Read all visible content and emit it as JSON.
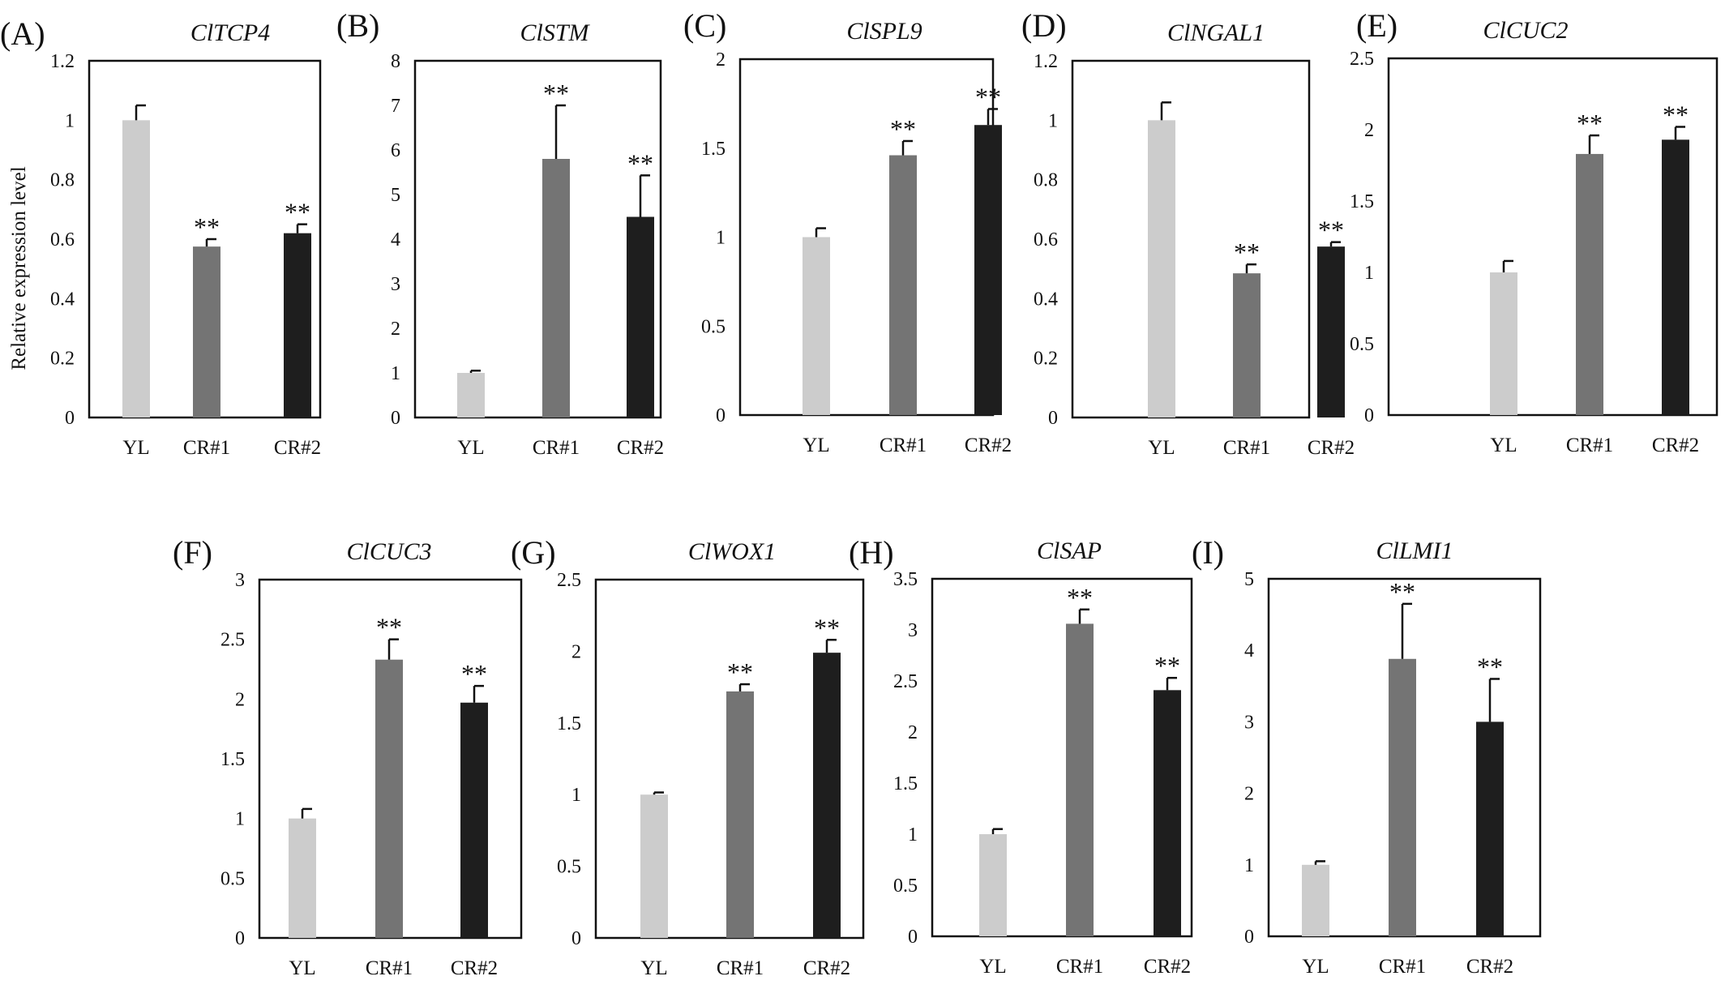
{
  "figure": {
    "ylabel": "Relative expression level"
  },
  "chart_data": [
    {
      "panel": "(A)",
      "title": "ClTCP4",
      "type": "bar",
      "categories": [
        "YL",
        "CR#1",
        "CR#2"
      ],
      "values": [
        1.0,
        0.575,
        0.62
      ],
      "errors": [
        0.05,
        0.025,
        0.03
      ],
      "significance": [
        "",
        "**",
        "**"
      ],
      "ylabel": "Relative expression level",
      "ylim": [
        0,
        1.2
      ],
      "yticks": [
        "0",
        "0.2",
        "0.4",
        "0.6",
        "0.8",
        "1",
        "1.2"
      ]
    },
    {
      "panel": "(B)",
      "title": "ClSTM",
      "type": "bar",
      "categories": [
        "YL",
        "CR#1",
        "CR#2"
      ],
      "values": [
        1.0,
        5.8,
        4.5
      ],
      "errors": [
        0.05,
        1.2,
        0.93
      ],
      "significance": [
        "",
        "**",
        "**"
      ],
      "ylabel": "",
      "ylim": [
        0,
        8
      ],
      "yticks": [
        "0",
        "1",
        "2",
        "3",
        "4",
        "5",
        "6",
        "7",
        "8"
      ]
    },
    {
      "panel": "(C)",
      "title": "ClSPL9",
      "type": "bar",
      "categories": [
        "YL",
        "CR#1",
        "CR#2"
      ],
      "values": [
        1.0,
        1.46,
        1.63
      ],
      "errors": [
        0.05,
        0.08,
        0.09
      ],
      "significance": [
        "",
        "**",
        "**"
      ],
      "ylabel": "",
      "ylim": [
        0,
        2
      ],
      "yticks": [
        "0",
        "0.5",
        "1",
        "1.5",
        "2"
      ]
    },
    {
      "panel": "(D)",
      "title": "ClNGAL1",
      "type": "bar",
      "categories": [
        "YL",
        "CR#1",
        "CR#2"
      ],
      "values": [
        1.0,
        0.485,
        0.575
      ],
      "errors": [
        0.06,
        0.03,
        0.015
      ],
      "significance": [
        "",
        "**",
        "**"
      ],
      "ylabel": "",
      "ylim": [
        0,
        1.2
      ],
      "yticks": [
        "0",
        "0.2",
        "0.4",
        "0.6",
        "0.8",
        "1",
        "1.2"
      ]
    },
    {
      "panel": "(E)",
      "title": "ClCUC2",
      "type": "bar",
      "categories": [
        "YL",
        "CR#1",
        "CR#2"
      ],
      "values": [
        1.0,
        1.83,
        1.93
      ],
      "errors": [
        0.08,
        0.13,
        0.09
      ],
      "significance": [
        "",
        "**",
        "**"
      ],
      "ylabel": "",
      "ylim": [
        0,
        2.5
      ],
      "yticks": [
        "0",
        "0.5",
        "1",
        "1.5",
        "2",
        "2.5"
      ]
    },
    {
      "panel": "(F)",
      "title": "ClCUC3",
      "type": "bar",
      "categories": [
        "YL",
        "CR#1",
        "CR#2"
      ],
      "values": [
        1.0,
        2.33,
        1.97
      ],
      "errors": [
        0.08,
        0.17,
        0.14
      ],
      "significance": [
        "",
        "**",
        "**"
      ],
      "ylabel": "",
      "ylim": [
        0,
        3
      ],
      "yticks": [
        "0",
        "0.5",
        "1",
        "1.5",
        "2",
        "2.5",
        "3"
      ]
    },
    {
      "panel": "(G)",
      "title": "ClWOX1",
      "type": "bar",
      "categories": [
        "YL",
        "CR#1",
        "CR#2"
      ],
      "values": [
        1.0,
        1.72,
        1.99
      ],
      "errors": [
        0.015,
        0.05,
        0.09
      ],
      "significance": [
        "",
        "**",
        "**"
      ],
      "ylabel": "",
      "ylim": [
        0,
        2.5
      ],
      "yticks": [
        "0",
        "0.5",
        "1",
        "1.5",
        "2",
        "2.5"
      ]
    },
    {
      "panel": "(H)",
      "title": "ClSAP",
      "type": "bar",
      "categories": [
        "YL",
        "CR#1",
        "CR#2"
      ],
      "values": [
        1.0,
        3.06,
        2.41
      ],
      "errors": [
        0.05,
        0.14,
        0.12
      ],
      "significance": [
        "",
        "**",
        "**"
      ],
      "ylabel": "",
      "ylim": [
        0,
        3.5
      ],
      "yticks": [
        "0",
        "0.5",
        "1",
        "1.5",
        "2",
        "2.5",
        "3",
        "3.5"
      ]
    },
    {
      "panel": "(I)",
      "title": "ClLMI1",
      "type": "bar",
      "categories": [
        "YL",
        "CR#1",
        "CR#2"
      ],
      "values": [
        1.0,
        3.88,
        3.0
      ],
      "errors": [
        0.05,
        0.77,
        0.6
      ],
      "significance": [
        "",
        "**",
        "**"
      ],
      "ylabel": "",
      "ylim": [
        0,
        5
      ],
      "yticks": [
        "0",
        "1",
        "2",
        "3",
        "4",
        "5"
      ]
    }
  ],
  "colors": {
    "YL": "#cccccc",
    "CR#1": "#747474",
    "CR#2": "#1e1e1e",
    "axis": "#111111"
  }
}
